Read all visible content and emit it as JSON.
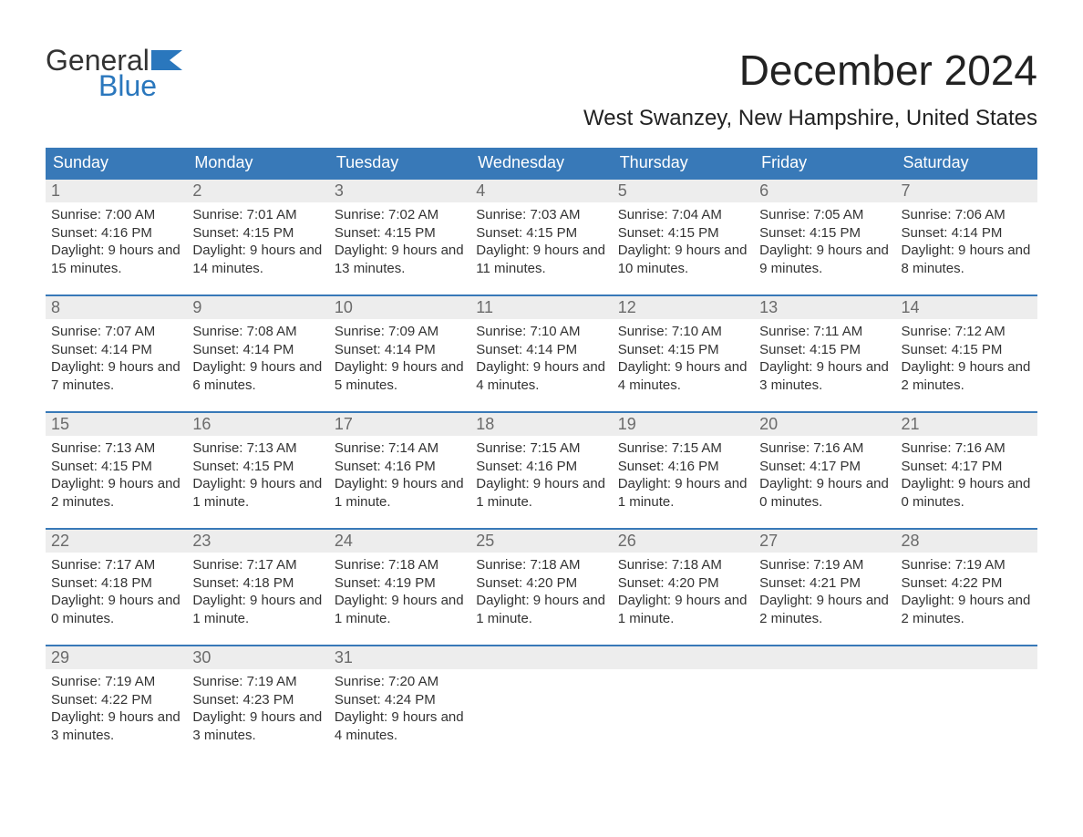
{
  "logo": {
    "top": "General",
    "bottom": "Blue"
  },
  "title": "December 2024",
  "subtitle": "West Swanzey, New Hampshire, United States",
  "colors": {
    "header_bg": "#3879b8",
    "header_text": "#ffffff",
    "daynum_bg": "#ededed",
    "daynum_text": "#6b6b6b",
    "week_border": "#3879b8",
    "logo_blue": "#2a77bd",
    "body_text": "#333333",
    "page_bg": "#ffffff"
  },
  "day_names": [
    "Sunday",
    "Monday",
    "Tuesday",
    "Wednesday",
    "Thursday",
    "Friday",
    "Saturday"
  ],
  "weeks": [
    [
      {
        "n": "1",
        "sr": "Sunrise: 7:00 AM",
        "ss": "Sunset: 4:16 PM",
        "dl": "Daylight: 9 hours and 15 minutes."
      },
      {
        "n": "2",
        "sr": "Sunrise: 7:01 AM",
        "ss": "Sunset: 4:15 PM",
        "dl": "Daylight: 9 hours and 14 minutes."
      },
      {
        "n": "3",
        "sr": "Sunrise: 7:02 AM",
        "ss": "Sunset: 4:15 PM",
        "dl": "Daylight: 9 hours and 13 minutes."
      },
      {
        "n": "4",
        "sr": "Sunrise: 7:03 AM",
        "ss": "Sunset: 4:15 PM",
        "dl": "Daylight: 9 hours and 11 minutes."
      },
      {
        "n": "5",
        "sr": "Sunrise: 7:04 AM",
        "ss": "Sunset: 4:15 PM",
        "dl": "Daylight: 9 hours and 10 minutes."
      },
      {
        "n": "6",
        "sr": "Sunrise: 7:05 AM",
        "ss": "Sunset: 4:15 PM",
        "dl": "Daylight: 9 hours and 9 minutes."
      },
      {
        "n": "7",
        "sr": "Sunrise: 7:06 AM",
        "ss": "Sunset: 4:14 PM",
        "dl": "Daylight: 9 hours and 8 minutes."
      }
    ],
    [
      {
        "n": "8",
        "sr": "Sunrise: 7:07 AM",
        "ss": "Sunset: 4:14 PM",
        "dl": "Daylight: 9 hours and 7 minutes."
      },
      {
        "n": "9",
        "sr": "Sunrise: 7:08 AM",
        "ss": "Sunset: 4:14 PM",
        "dl": "Daylight: 9 hours and 6 minutes."
      },
      {
        "n": "10",
        "sr": "Sunrise: 7:09 AM",
        "ss": "Sunset: 4:14 PM",
        "dl": "Daylight: 9 hours and 5 minutes."
      },
      {
        "n": "11",
        "sr": "Sunrise: 7:10 AM",
        "ss": "Sunset: 4:14 PM",
        "dl": "Daylight: 9 hours and 4 minutes."
      },
      {
        "n": "12",
        "sr": "Sunrise: 7:10 AM",
        "ss": "Sunset: 4:15 PM",
        "dl": "Daylight: 9 hours and 4 minutes."
      },
      {
        "n": "13",
        "sr": "Sunrise: 7:11 AM",
        "ss": "Sunset: 4:15 PM",
        "dl": "Daylight: 9 hours and 3 minutes."
      },
      {
        "n": "14",
        "sr": "Sunrise: 7:12 AM",
        "ss": "Sunset: 4:15 PM",
        "dl": "Daylight: 9 hours and 2 minutes."
      }
    ],
    [
      {
        "n": "15",
        "sr": "Sunrise: 7:13 AM",
        "ss": "Sunset: 4:15 PM",
        "dl": "Daylight: 9 hours and 2 minutes."
      },
      {
        "n": "16",
        "sr": "Sunrise: 7:13 AM",
        "ss": "Sunset: 4:15 PM",
        "dl": "Daylight: 9 hours and 1 minute."
      },
      {
        "n": "17",
        "sr": "Sunrise: 7:14 AM",
        "ss": "Sunset: 4:16 PM",
        "dl": "Daylight: 9 hours and 1 minute."
      },
      {
        "n": "18",
        "sr": "Sunrise: 7:15 AM",
        "ss": "Sunset: 4:16 PM",
        "dl": "Daylight: 9 hours and 1 minute."
      },
      {
        "n": "19",
        "sr": "Sunrise: 7:15 AM",
        "ss": "Sunset: 4:16 PM",
        "dl": "Daylight: 9 hours and 1 minute."
      },
      {
        "n": "20",
        "sr": "Sunrise: 7:16 AM",
        "ss": "Sunset: 4:17 PM",
        "dl": "Daylight: 9 hours and 0 minutes."
      },
      {
        "n": "21",
        "sr": "Sunrise: 7:16 AM",
        "ss": "Sunset: 4:17 PM",
        "dl": "Daylight: 9 hours and 0 minutes."
      }
    ],
    [
      {
        "n": "22",
        "sr": "Sunrise: 7:17 AM",
        "ss": "Sunset: 4:18 PM",
        "dl": "Daylight: 9 hours and 0 minutes."
      },
      {
        "n": "23",
        "sr": "Sunrise: 7:17 AM",
        "ss": "Sunset: 4:18 PM",
        "dl": "Daylight: 9 hours and 1 minute."
      },
      {
        "n": "24",
        "sr": "Sunrise: 7:18 AM",
        "ss": "Sunset: 4:19 PM",
        "dl": "Daylight: 9 hours and 1 minute."
      },
      {
        "n": "25",
        "sr": "Sunrise: 7:18 AM",
        "ss": "Sunset: 4:20 PM",
        "dl": "Daylight: 9 hours and 1 minute."
      },
      {
        "n": "26",
        "sr": "Sunrise: 7:18 AM",
        "ss": "Sunset: 4:20 PM",
        "dl": "Daylight: 9 hours and 1 minute."
      },
      {
        "n": "27",
        "sr": "Sunrise: 7:19 AM",
        "ss": "Sunset: 4:21 PM",
        "dl": "Daylight: 9 hours and 2 minutes."
      },
      {
        "n": "28",
        "sr": "Sunrise: 7:19 AM",
        "ss": "Sunset: 4:22 PM",
        "dl": "Daylight: 9 hours and 2 minutes."
      }
    ],
    [
      {
        "n": "29",
        "sr": "Sunrise: 7:19 AM",
        "ss": "Sunset: 4:22 PM",
        "dl": "Daylight: 9 hours and 3 minutes."
      },
      {
        "n": "30",
        "sr": "Sunrise: 7:19 AM",
        "ss": "Sunset: 4:23 PM",
        "dl": "Daylight: 9 hours and 3 minutes."
      },
      {
        "n": "31",
        "sr": "Sunrise: 7:20 AM",
        "ss": "Sunset: 4:24 PM",
        "dl": "Daylight: 9 hours and 4 minutes."
      },
      null,
      null,
      null,
      null
    ]
  ]
}
